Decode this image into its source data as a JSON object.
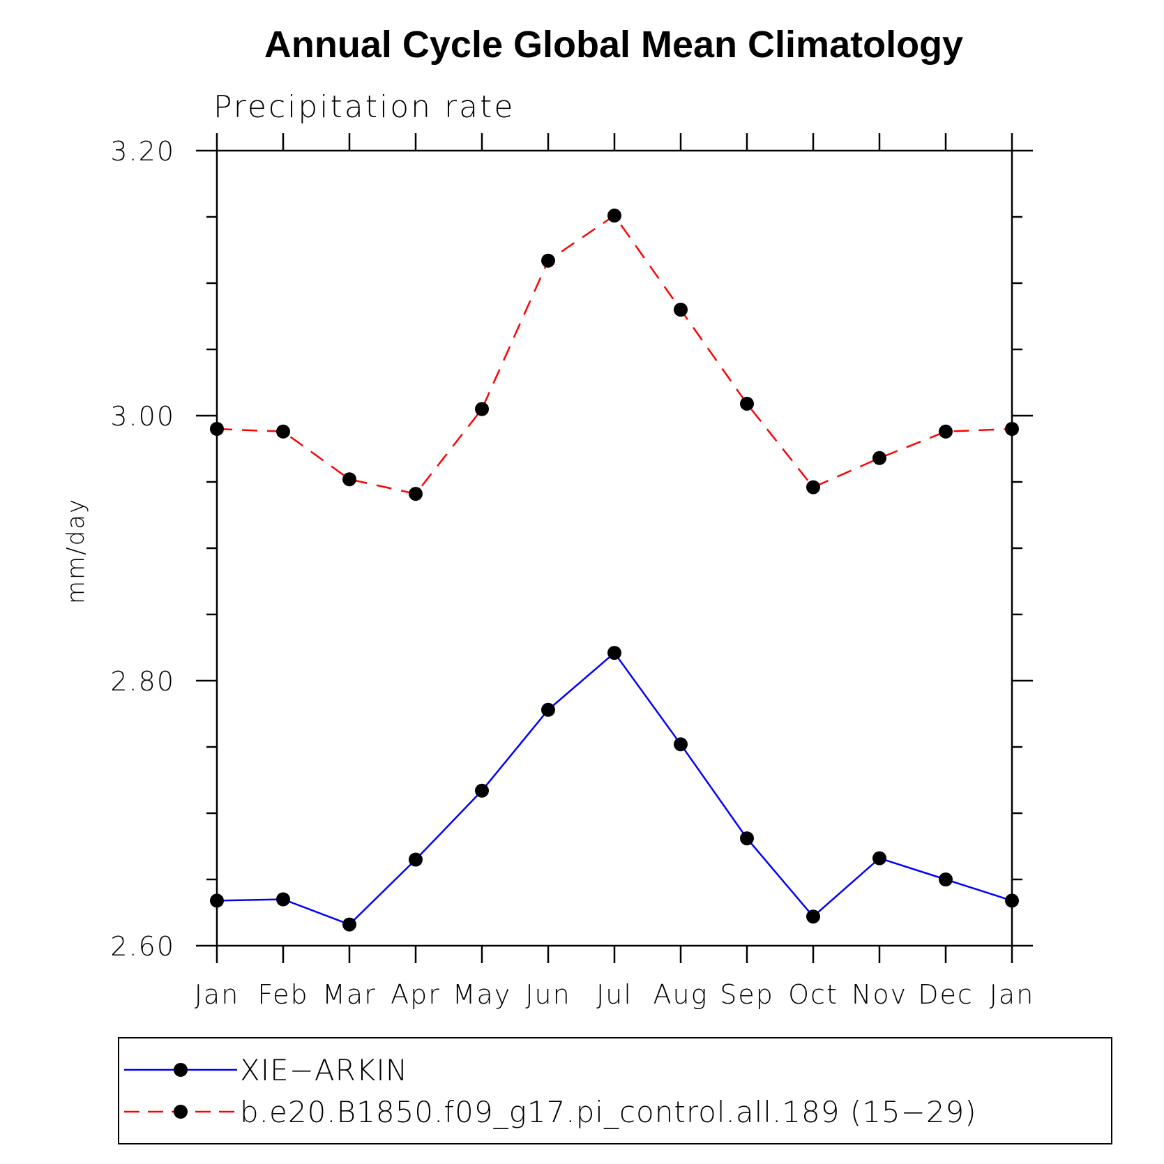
{
  "chart_data": {
    "type": "line",
    "title": "Annual Cycle Global Mean Climatology",
    "subtitle": "Precipitation rate",
    "xlabel": "",
    "ylabel": "mm/day",
    "categories": [
      "Jan",
      "Feb",
      "Mar",
      "Apr",
      "May",
      "Jun",
      "Jul",
      "Aug",
      "Sep",
      "Oct",
      "Nov",
      "Dec",
      "Jan"
    ],
    "ylim": [
      2.6,
      3.2
    ],
    "yticks": [
      2.6,
      2.8,
      3.0,
      3.2
    ],
    "ytick_labels": [
      "2.60",
      "2.80",
      "3.00",
      "3.20"
    ],
    "series": [
      {
        "name": "XIE−ARKIN",
        "color": "#0000ff",
        "dash": "solid",
        "marker": "circle",
        "values": [
          2.634,
          2.635,
          2.616,
          2.665,
          2.717,
          2.778,
          2.821,
          2.752,
          2.681,
          2.622,
          2.666,
          2.65,
          2.634
        ]
      },
      {
        "name": "b.e20.B1850.f09_g17.pi_control.all.189 (15−29)",
        "color": "#ff0000",
        "dash": "dashed",
        "marker": "circle",
        "values": [
          2.99,
          2.988,
          2.952,
          2.941,
          3.005,
          3.117,
          3.151,
          3.08,
          3.009,
          2.946,
          2.968,
          2.988,
          2.99
        ]
      }
    ],
    "legend_position": "bottom"
  }
}
